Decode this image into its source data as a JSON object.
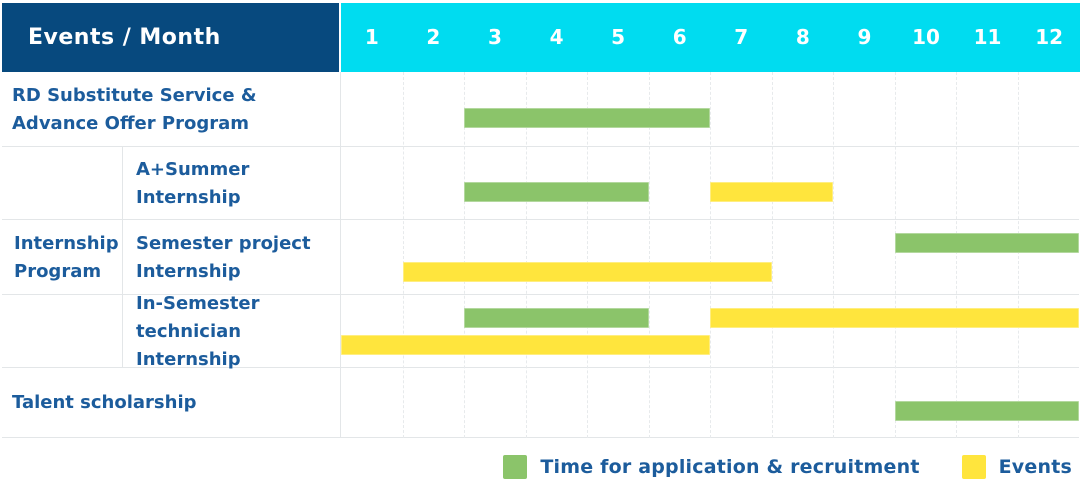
{
  "header": {
    "title": "Events / Month"
  },
  "colors": {
    "navy": "#07497E",
    "cyan": "#00DCF0",
    "blue": "#1C5C9C",
    "green": "#8BC46A",
    "yellow": "#FFE53D",
    "grid": "#E3E6E8",
    "gridlight": "#E7EAEC"
  },
  "chart_data": {
    "type": "gantt",
    "title": "Events / Month",
    "unit": "month",
    "months": [
      "1",
      "2",
      "3",
      "4",
      "5",
      "6",
      "7",
      "8",
      "9",
      "10",
      "11",
      "12"
    ],
    "month_range": [
      1,
      12
    ],
    "grid": "dashed-vertical-month-lines",
    "groups": [
      {
        "id": "internship-program",
        "label_lines": [
          "Internship",
          "Program"
        ]
      }
    ],
    "rows": [
      {
        "id": "rd-substitute-service",
        "group": null,
        "label_lines": [
          "RD Substitute Service &",
          "Advance Offer Program"
        ],
        "lanes": [
          [
            {
              "kind": "recruitment",
              "start": 3,
              "end": 6
            }
          ]
        ]
      },
      {
        "id": "a-plus-summer-internship",
        "group": "internship-program",
        "label_lines": [
          "A+Summer",
          "Internship"
        ],
        "lanes": [
          [
            {
              "kind": "recruitment",
              "start": 3,
              "end": 5
            },
            {
              "kind": "event",
              "start": 7,
              "end": 8
            }
          ]
        ]
      },
      {
        "id": "semester-project-internship",
        "group": "internship-program",
        "label_lines": [
          "Semester project",
          "Internship"
        ],
        "lanes": [
          [
            {
              "kind": "recruitment",
              "start": 10,
              "end": 12
            }
          ],
          [
            {
              "kind": "event",
              "start": 2,
              "end": 7
            }
          ]
        ]
      },
      {
        "id": "in-semester-technician-internship",
        "group": "internship-program",
        "label_lines": [
          "In-Semester",
          "technician Internship"
        ],
        "lanes": [
          [
            {
              "kind": "recruitment",
              "start": 3,
              "end": 5
            },
            {
              "kind": "event",
              "start": 7,
              "end": 12
            }
          ],
          [
            {
              "kind": "event",
              "start": 1,
              "end": 6
            }
          ]
        ]
      },
      {
        "id": "talent-scholarship",
        "group": null,
        "label_lines": [
          "Talent scholarship"
        ],
        "lanes": [
          [
            {
              "kind": "recruitment",
              "start": 10,
              "end": 12
            }
          ]
        ]
      }
    ],
    "legend": [
      {
        "kind": "recruitment",
        "label": "Time for application & recruitment"
      },
      {
        "kind": "event",
        "label": "Events"
      }
    ],
    "legend_position": "bottom-right"
  }
}
